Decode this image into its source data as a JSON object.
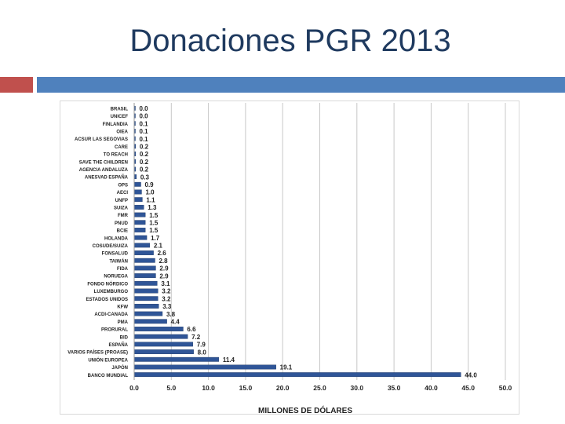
{
  "slide": {
    "title": "Donaciones PGR 2013"
  },
  "colors": {
    "bar": "#2f5597",
    "bar_light": "#5b87c7",
    "title": "#1f3a5f",
    "accent_red": "#c0504d",
    "accent_blue": "#4f81bd"
  },
  "chart_data": {
    "type": "bar",
    "orientation": "horizontal",
    "title": "",
    "xlabel": "MILLONES DE DÓLARES",
    "ylabel": "",
    "xlim": [
      0,
      50
    ],
    "xticks": [
      "0.0",
      "5.0",
      "10.0",
      "15.0",
      "20.0",
      "25.0",
      "30.0",
      "35.0",
      "40.0",
      "45.0",
      "50.0"
    ],
    "grid": "vertical",
    "categories": [
      "BRASIL",
      "UNICEF",
      "FINLANDIA",
      "OIEA",
      "ACSUR LAS SEGOVIAS",
      "CARE",
      "TO REACH",
      "SAVE THE CHILDREN",
      "AGENCIA ANDALUZA",
      "ANESVAD ESPAÑA",
      "OPS",
      "AECI",
      "UNFP",
      "SUIZA",
      "FMR",
      "PNUD",
      "BCIE",
      "HOLANDA",
      "COSUDE/SUIZA",
      "FONSALUD",
      "TAIWÁN",
      "FIDA",
      "NORUEGA",
      "FONDO NÓRDICO",
      "LUXEMBURGO",
      "ESTADOS UNIDOS",
      "KFW",
      "ACDI-CANADA",
      "PMA",
      "PRORURAL",
      "BID",
      "ESPAÑA",
      "VARIOS PAÍSES (PROASE)",
      "UNIÓN EUROPEA",
      "JAPÓN",
      "BANCO MUNDIAL"
    ],
    "values": [
      0.0,
      0.0,
      0.1,
      0.1,
      0.1,
      0.2,
      0.2,
      0.2,
      0.2,
      0.3,
      0.9,
      1.0,
      1.1,
      1.3,
      1.5,
      1.5,
      1.5,
      1.7,
      2.1,
      2.6,
      2.8,
      2.9,
      2.9,
      3.1,
      3.2,
      3.2,
      3.3,
      3.8,
      4.4,
      6.6,
      7.2,
      7.9,
      8.0,
      11.4,
      19.1,
      44.0
    ],
    "value_labels": [
      "0.0",
      "0.0",
      "0.1",
      "0.1",
      "0.1",
      "0.2",
      "0.2",
      "0.2",
      "0.2",
      "0.3",
      "0.9",
      "1.0",
      "1.1",
      "1.3",
      "1.5",
      "1.5",
      "1.5",
      "1.7",
      "2.1",
      "2.6",
      "2.8",
      "2.9",
      "2.9",
      "3.1",
      "3.2",
      "3.2",
      "3.3",
      "3.8",
      "4.4",
      "6.6",
      "7.2",
      "7.9",
      "8.0",
      "11.4",
      "19.1",
      "44.0"
    ]
  }
}
